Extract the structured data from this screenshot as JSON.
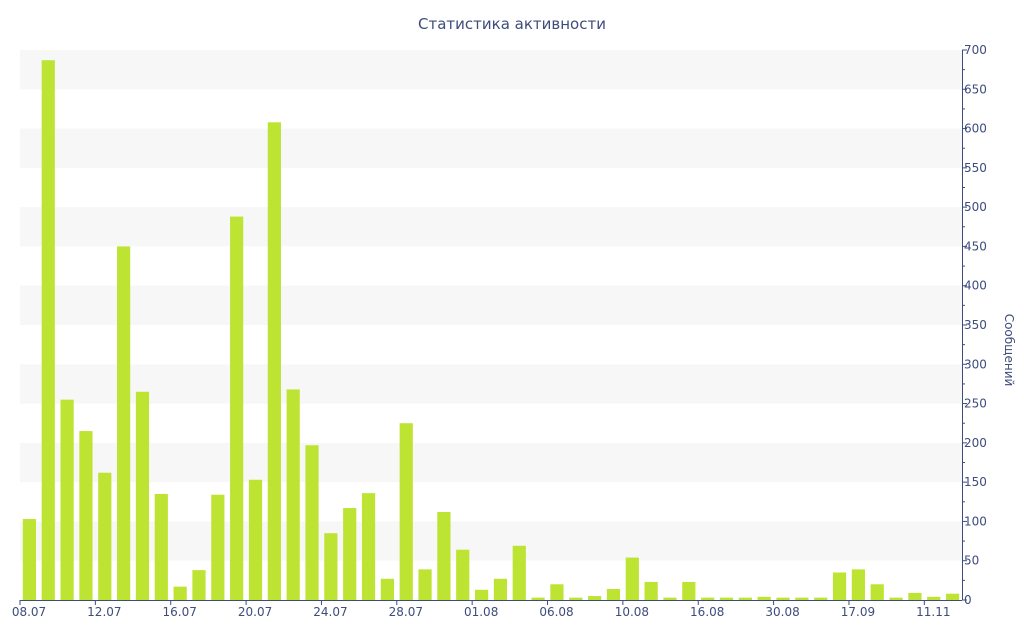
{
  "chart_data": {
    "type": "bar",
    "title": "Статистика активности",
    "ylabel": "Сообщений",
    "ylim": [
      0,
      700
    ],
    "yticks": [
      0,
      50,
      100,
      150,
      200,
      250,
      300,
      350,
      400,
      450,
      500,
      550,
      600,
      650,
      700
    ],
    "x_tick_labels": [
      "08.07",
      "12.07",
      "16.07",
      "20.07",
      "24.07",
      "28.07",
      "01.08",
      "06.08",
      "10.08",
      "16.08",
      "30.08",
      "17.09",
      "11.11"
    ],
    "x_tick_indices": [
      0,
      4,
      8,
      12,
      16,
      20,
      24,
      28,
      32,
      36,
      40,
      44,
      48
    ],
    "values": [
      103,
      687,
      255,
      215,
      162,
      450,
      265,
      135,
      17,
      38,
      134,
      488,
      153,
      608,
      268,
      197,
      85,
      117,
      136,
      27,
      225,
      39,
      112,
      64,
      13,
      27,
      69,
      3,
      20,
      3,
      5,
      14,
      54,
      23,
      3,
      23,
      3,
      3,
      3,
      4,
      3,
      3,
      3,
      35,
      39,
      20,
      3,
      9,
      4,
      8
    ],
    "bar_color": "#BDE333",
    "band_color": "#F7F7F7",
    "axis_color": "#3E4C7C",
    "grid": true,
    "y_axis_side": "right"
  }
}
